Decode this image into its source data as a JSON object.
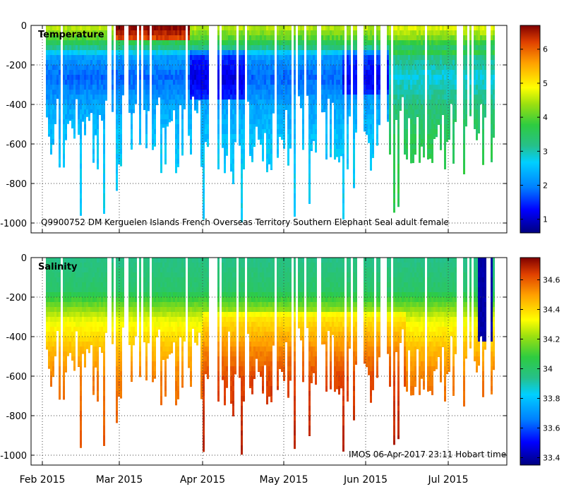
{
  "chart_data": [
    {
      "type": "heatmap",
      "title": "Temperature",
      "annotation": "Q9900752 DM Kerguelen Islands French Overseas Territory Southern Elephant Seal adult female",
      "xlabel": "",
      "ylabel": "",
      "x_ticks": [
        "Feb 2015",
        "Mar 2015",
        "Apr 2015",
        "May 2015",
        "Jun 2015",
        "Jul 2015"
      ],
      "y_ticks": [
        0,
        -200,
        -400,
        -600,
        -800,
        -1000
      ],
      "ylim": [
        -1050,
        0
      ],
      "colorbar_ticks": [
        1,
        2,
        3,
        4,
        5,
        6
      ],
      "colorbar_range": [
        0.6,
        6.7
      ],
      "grid": true,
      "depth_profile": [
        {
          "depth": 0,
          "value": 4.5
        },
        {
          "depth": -50,
          "value": 4.0
        },
        {
          "depth": -100,
          "value": 3.2
        },
        {
          "depth": -150,
          "value": 2.2
        },
        {
          "depth": -250,
          "value": 1.8
        },
        {
          "depth": -400,
          "value": 2.3
        },
        {
          "depth": -600,
          "value": 2.6
        },
        {
          "depth": -1000,
          "value": 2.7
        }
      ],
      "features": [
        {
          "period": "Feb–Mar 2015",
          "depth_range": [
            0,
            -60
          ],
          "value": 6.5,
          "note": "warm surface layer"
        },
        {
          "period": "late Mar–Apr 2015",
          "depth_range": [
            -120,
            -350
          ],
          "value": 1.2,
          "note": "cold core"
        },
        {
          "period": "late May 2015",
          "depth_range": [
            -120,
            -320
          ],
          "value": 1.3,
          "note": "cold core"
        },
        {
          "period": "Jun–Jul 2015",
          "depth_range": [
            0,
            -700
          ],
          "value": 3.6,
          "note": "warmer, mixed"
        }
      ]
    },
    {
      "type": "heatmap",
      "title": "Salinity",
      "annotation": "IMOS 06-Apr-2017 23:11 Hobart time",
      "xlabel": "",
      "ylabel": "",
      "x_ticks": [
        "Feb 2015",
        "Mar 2015",
        "Apr 2015",
        "May 2015",
        "Jun 2015",
        "Jul 2015"
      ],
      "y_ticks": [
        0,
        -200,
        -400,
        -600,
        -800,
        -1000
      ],
      "ylim": [
        -1050,
        0
      ],
      "colorbar_ticks": [
        33.4,
        33.6,
        33.8,
        34,
        34.2,
        34.4,
        34.6
      ],
      "colorbar_range": [
        33.35,
        34.75
      ],
      "grid": true,
      "depth_profile": [
        {
          "depth": 0,
          "value": 33.95
        },
        {
          "depth": -150,
          "value": 34.0
        },
        {
          "depth": -300,
          "value": 34.3
        },
        {
          "depth": -450,
          "value": 34.45
        },
        {
          "depth": -600,
          "value": 34.55
        },
        {
          "depth": -1000,
          "value": 34.62
        }
      ],
      "features": [
        {
          "period": "mid Jul 2015",
          "depth_range": [
            0,
            -400
          ],
          "value": 33.4,
          "note": "fresh surface profile"
        }
      ]
    }
  ]
}
